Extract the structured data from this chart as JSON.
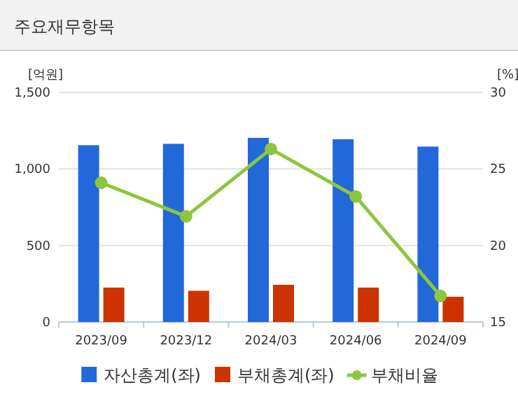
{
  "chart_data": {
    "type": "bar",
    "title": "주요재무항목",
    "ylabel": "[억원]",
    "y2label": "[%]",
    "categories": [
      "2023/09",
      "2023/12",
      "2024/03",
      "2024/06",
      "2024/09"
    ],
    "series": [
      {
        "name": "자산총계(좌)",
        "color": "#2268d8",
        "values": [
          1155,
          1164,
          1203,
          1194,
          1146
        ]
      },
      {
        "name": "부채총계(좌)",
        "color": "#cc3300",
        "values": [
          225,
          204,
          243,
          225,
          165
        ]
      },
      {
        "name": "부채비율",
        "type": "line",
        "axis": "y2",
        "color": "#8cc63f",
        "values": [
          24.1,
          21.9,
          26.3,
          23.2,
          16.7
        ]
      }
    ],
    "ylim": [
      0,
      1500
    ],
    "yticks": [
      {
        "value": 0,
        "label": "0"
      },
      {
        "value": 500,
        "label": "500"
      },
      {
        "value": 1000,
        "label": "1,000"
      },
      {
        "value": 1500,
        "label": "1,500"
      }
    ],
    "y2lim": [
      15,
      30
    ],
    "y2ticks": [
      15,
      20,
      25,
      30
    ],
    "grid": "y",
    "marker": "circle",
    "legend": "bottom"
  }
}
